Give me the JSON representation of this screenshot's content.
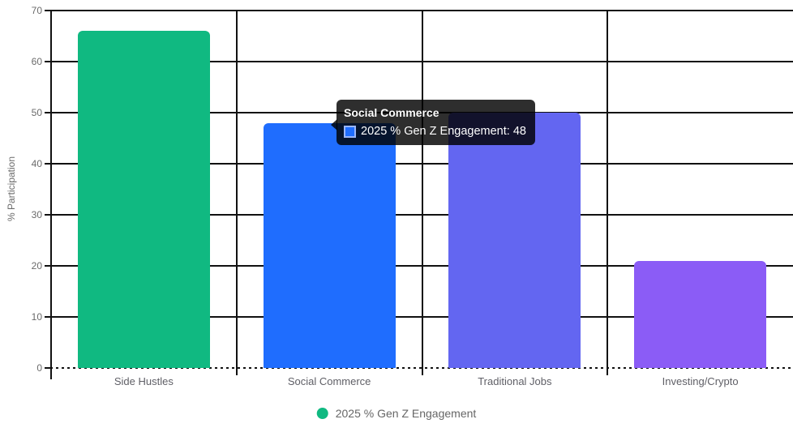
{
  "chart_data": {
    "type": "bar",
    "title": "",
    "categories": [
      "Side Hustles",
      "Social Commerce",
      "Traditional Jobs",
      "Investing/Crypto"
    ],
    "series": [
      {
        "name": "2025 % Gen Z Engagement",
        "values": [
          66,
          48,
          50,
          21
        ]
      }
    ],
    "bar_colors": [
      "#10b981",
      "#1f6dfe",
      "#6366f1",
      "#8b5cf6"
    ],
    "xlabel": "",
    "ylabel": "% Participation",
    "ylim": [
      0,
      70
    ],
    "yticks": [
      0,
      10,
      20,
      30,
      40,
      50,
      60,
      70
    ],
    "grid": true,
    "grid_color": "#111111",
    "legend_position": "bottom",
    "highlighted_category": "Social Commerce"
  },
  "tooltip": {
    "title": "Social Commerce",
    "text": "2025 % Gen Z Engagement: 48",
    "value": 48,
    "colorbox_fill": "#1f6dfe",
    "colorbox_border": "#9ab6fb"
  },
  "legend": {
    "label": "2025 % Gen Z Engagement",
    "marker_color": "#10b981"
  }
}
